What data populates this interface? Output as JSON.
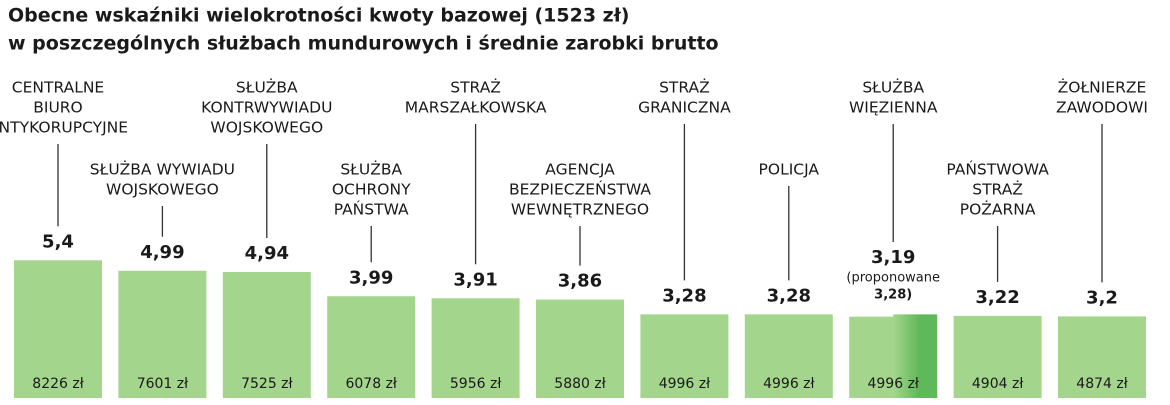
{
  "chart_data": {
    "type": "bar",
    "title": [
      "Obecne wskaźniki wielokrotności kwoty bazowej (1523 zł)",
      "w poszczególnych służbach mundurowych i średnie zarobki brutto"
    ],
    "categories": [
      [
        "CENTRALNE",
        "BIURO",
        "ANTYKORUPCYJNE"
      ],
      [
        "SŁUŻBA WYWIADU",
        "WOJSKOWEGO"
      ],
      [
        "SŁUŻBA",
        "KONTRWYWIADU",
        "WOJSKOWEGO"
      ],
      [
        "SŁUŻBA",
        "OCHRONY",
        "PAŃSTWA"
      ],
      [
        "STRAŻ",
        "MARSZAŁKOWSKA"
      ],
      [
        "AGENCJA",
        "BEZPIECZEŃSTWA",
        "WEWNĘTRZNEGO"
      ],
      [
        "STRAŻ",
        "GRANICZNA"
      ],
      [
        "POLICJA"
      ],
      [
        "SŁUŻBA",
        "WIĘZIENNA"
      ],
      [
        "PAŃSTWOWA",
        "STRAŻ",
        "POŻARNA"
      ],
      [
        "ŻOŁNIERZE",
        "ZAWODOWI"
      ]
    ],
    "values": [
      5.4,
      4.99,
      4.94,
      3.99,
      3.91,
      3.86,
      3.28,
      3.28,
      3.19,
      3.22,
      3.2
    ],
    "value_labels": [
      "5,4",
      "4,99",
      "4,94",
      "3,99",
      "3,91",
      "3,86",
      "3,28",
      "3,28",
      "3,19",
      "3,22",
      "3,2"
    ],
    "salaries": [
      8226,
      7601,
      7525,
      6078,
      5956,
      5880,
      4996,
      4996,
      4996,
      4904,
      4874
    ],
    "salary_labels": [
      "8226 zł",
      "7601 zł",
      "7525 zł",
      "6078 zł",
      "5956 zł",
      "5880 zł",
      "4996 zł",
      "4996 zł",
      "4996 zł",
      "4904 zł",
      "4874 zł"
    ],
    "proposed": {
      "index": 8,
      "annotation": "(proponowane",
      "value": 3.28,
      "value_label": "3,28)",
      "color": "#5fb85a"
    },
    "color": "#a3d68c"
  }
}
